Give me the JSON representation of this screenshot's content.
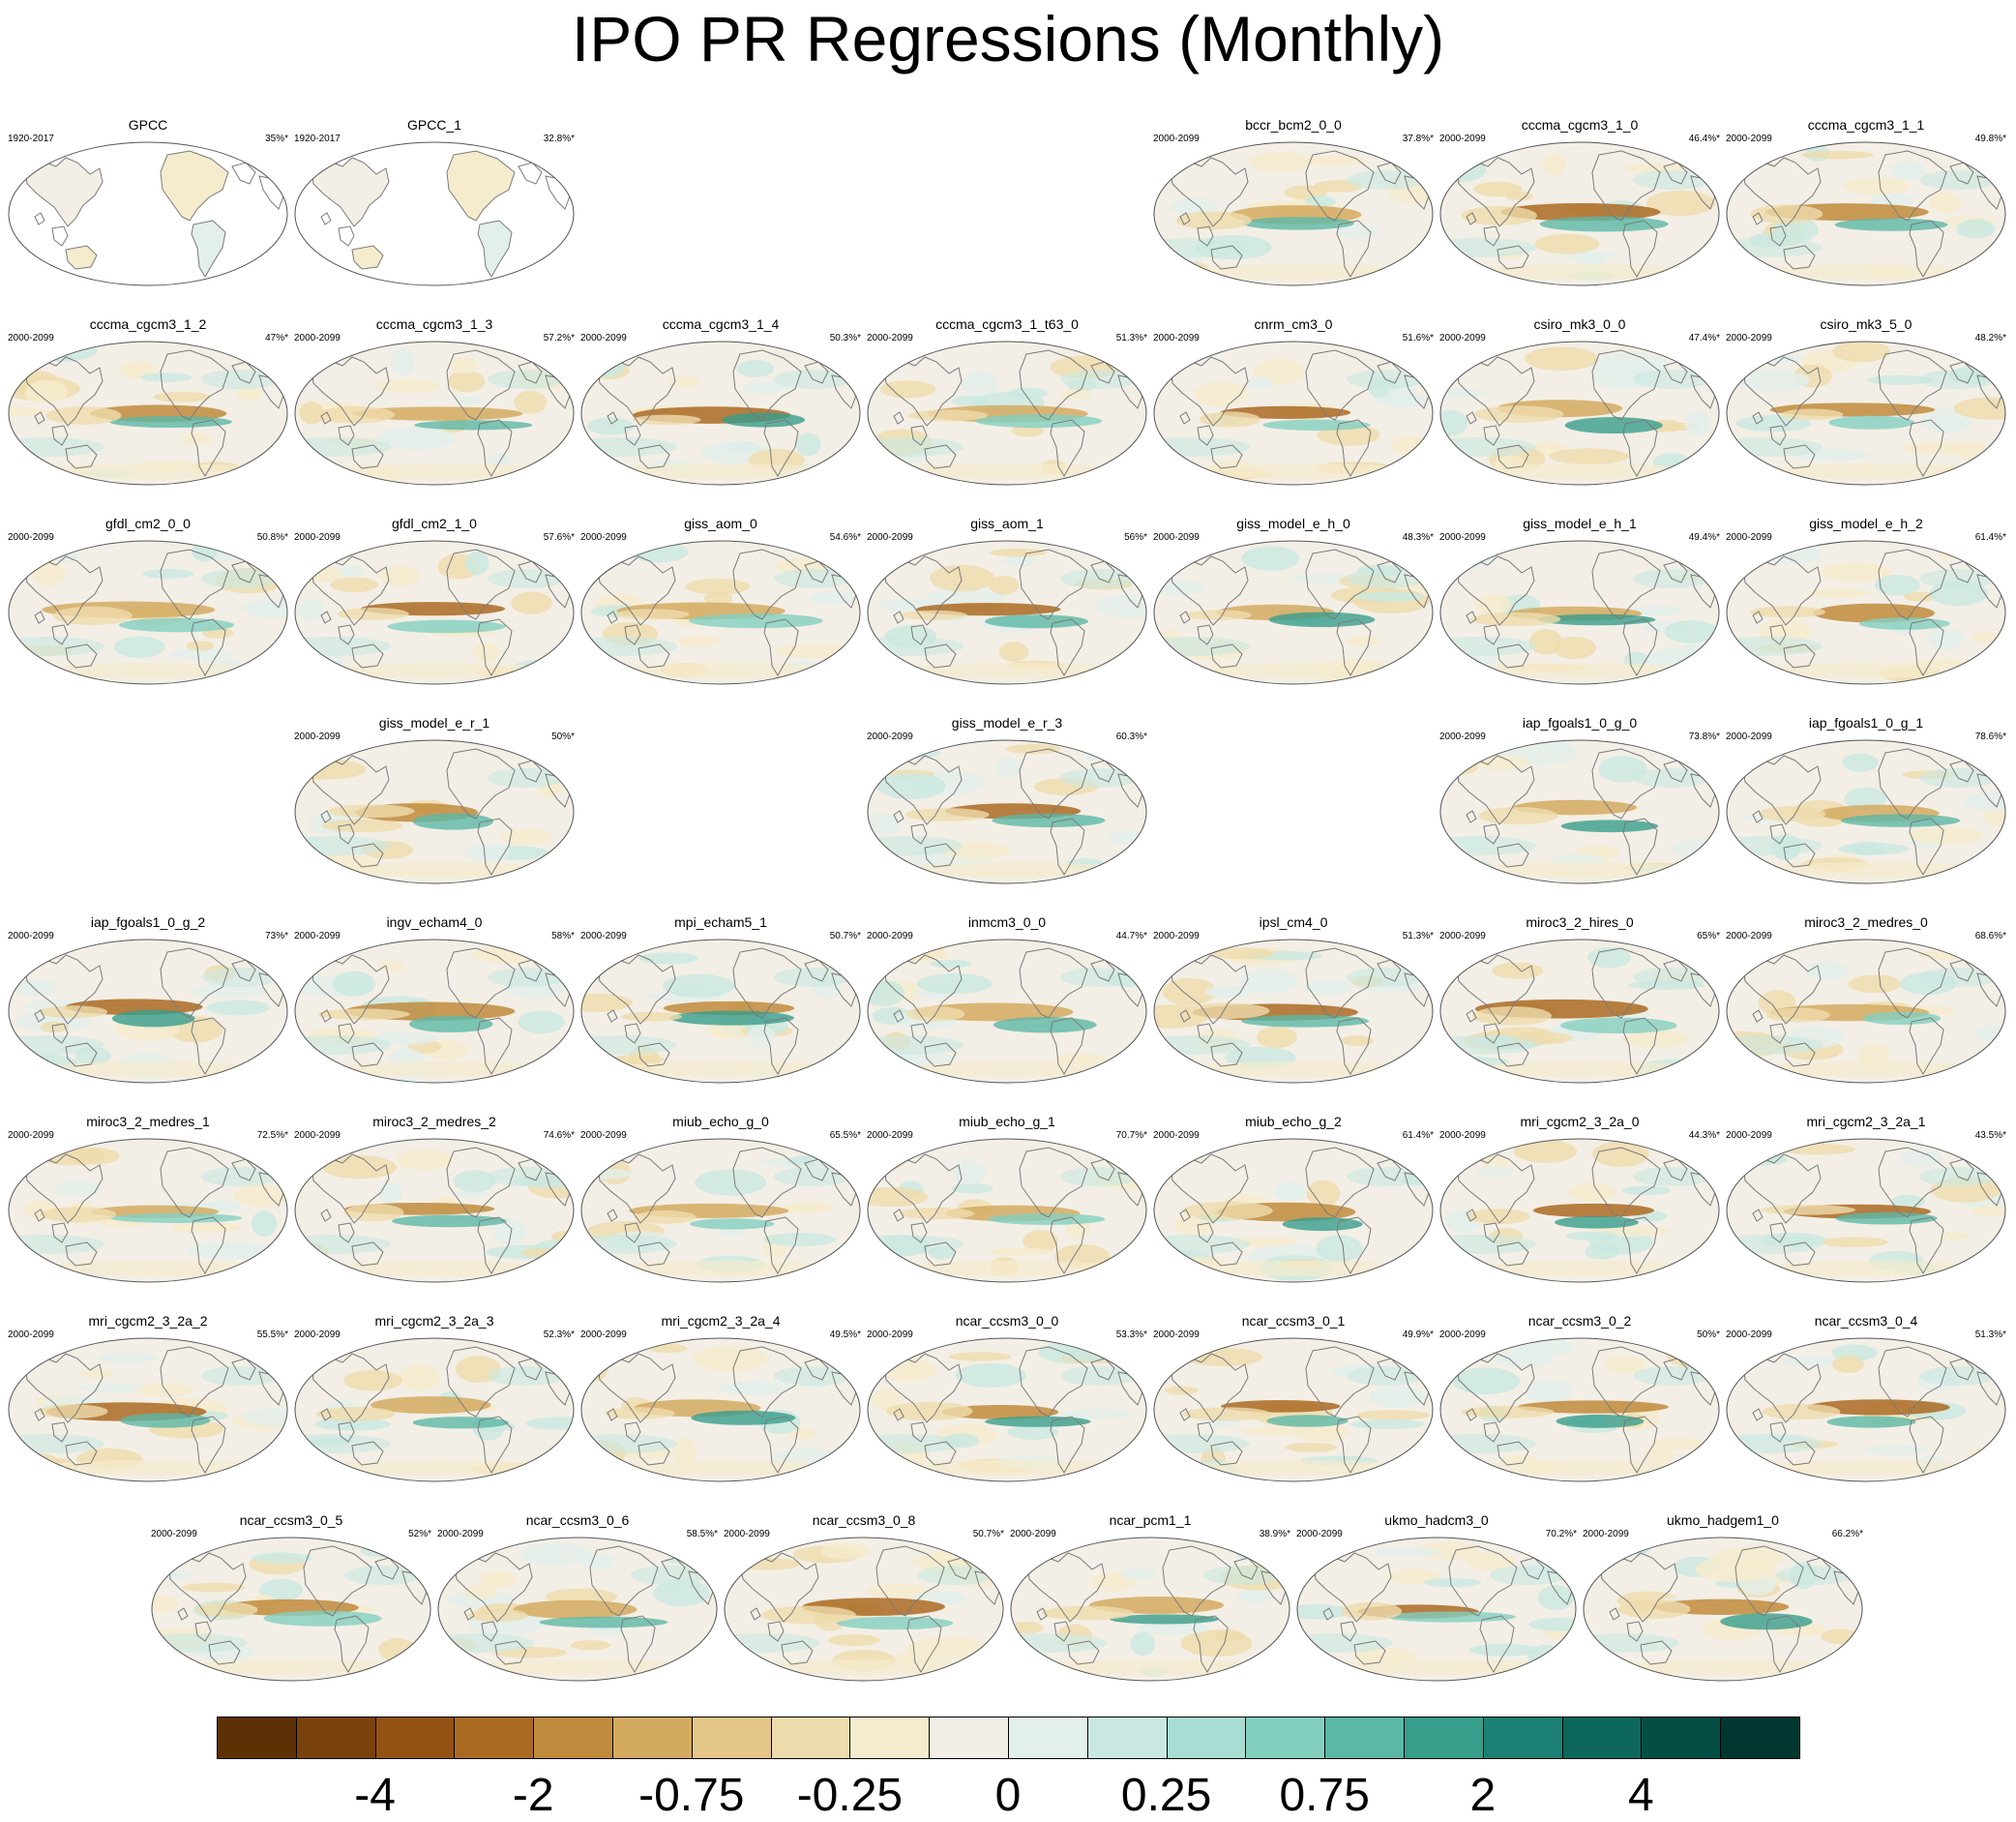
{
  "title": "IPO PR Regressions (Monthly)",
  "rows": [
    [
      {
        "name": "GPCC",
        "period": "1920-2017",
        "pct": "35%*",
        "obs": true
      },
      {
        "name": "GPCC_1",
        "period": "1920-2017",
        "pct": "32.8%*",
        "obs": true
      },
      null,
      null,
      {
        "name": "bccr_bcm2_0_0",
        "period": "2000-2099",
        "pct": "37.8%*"
      },
      {
        "name": "cccma_cgcm3_1_0",
        "period": "2000-2099",
        "pct": "46.4%*"
      },
      {
        "name": "cccma_cgcm3_1_1",
        "period": "2000-2099",
        "pct": "49.8%*"
      }
    ],
    [
      {
        "name": "cccma_cgcm3_1_2",
        "period": "2000-2099",
        "pct": "47%*"
      },
      {
        "name": "cccma_cgcm3_1_3",
        "period": "2000-2099",
        "pct": "57.2%*"
      },
      {
        "name": "cccma_cgcm3_1_4",
        "period": "2000-2099",
        "pct": "50.3%*"
      },
      {
        "name": "cccma_cgcm3_1_t63_0",
        "period": "2000-2099",
        "pct": "51.3%*"
      },
      {
        "name": "cnrm_cm3_0",
        "period": "2000-2099",
        "pct": "51.6%*"
      },
      {
        "name": "csiro_mk3_0_0",
        "period": "2000-2099",
        "pct": "47.4%*"
      },
      {
        "name": "csiro_mk3_5_0",
        "period": "2000-2099",
        "pct": "48.2%*"
      }
    ],
    [
      {
        "name": "gfdl_cm2_0_0",
        "period": "2000-2099",
        "pct": "50.8%*"
      },
      {
        "name": "gfdl_cm2_1_0",
        "period": "2000-2099",
        "pct": "57.6%*"
      },
      {
        "name": "giss_aom_0",
        "period": "2000-2099",
        "pct": "54.6%*"
      },
      {
        "name": "giss_aom_1",
        "period": "2000-2099",
        "pct": "56%*"
      },
      {
        "name": "giss_model_e_h_0",
        "period": "2000-2099",
        "pct": "48.3%*"
      },
      {
        "name": "giss_model_e_h_1",
        "period": "2000-2099",
        "pct": "49.4%*"
      },
      {
        "name": "giss_model_e_h_2",
        "period": "2000-2099",
        "pct": "61.4%*"
      }
    ],
    [
      null,
      {
        "name": "giss_model_e_r_1",
        "period": "2000-2099",
        "pct": "50%*"
      },
      null,
      {
        "name": "giss_model_e_r_3",
        "period": "2000-2099",
        "pct": "60.3%*"
      },
      null,
      {
        "name": "iap_fgoals1_0_g_0",
        "period": "2000-2099",
        "pct": "73.8%*"
      },
      {
        "name": "iap_fgoals1_0_g_1",
        "period": "2000-2099",
        "pct": "78.6%*"
      }
    ],
    [
      {
        "name": "iap_fgoals1_0_g_2",
        "period": "2000-2099",
        "pct": "73%*"
      },
      {
        "name": "ingv_echam4_0",
        "period": "2000-2099",
        "pct": "58%*"
      },
      {
        "name": "mpi_echam5_1",
        "period": "2000-2099",
        "pct": "50.7%*"
      },
      {
        "name": "inmcm3_0_0",
        "period": "2000-2099",
        "pct": "44.7%*"
      },
      {
        "name": "ipsl_cm4_0",
        "period": "2000-2099",
        "pct": "51.3%*"
      },
      {
        "name": "miroc3_2_hires_0",
        "period": "2000-2099",
        "pct": "65%*"
      },
      {
        "name": "miroc3_2_medres_0",
        "period": "2000-2099",
        "pct": "68.6%*"
      }
    ],
    [
      {
        "name": "miroc3_2_medres_1",
        "period": "2000-2099",
        "pct": "72.5%*"
      },
      {
        "name": "miroc3_2_medres_2",
        "period": "2000-2099",
        "pct": "74.6%*"
      },
      {
        "name": "miub_echo_g_0",
        "period": "2000-2099",
        "pct": "65.5%*"
      },
      {
        "name": "miub_echo_g_1",
        "period": "2000-2099",
        "pct": "70.7%*"
      },
      {
        "name": "miub_echo_g_2",
        "period": "2000-2099",
        "pct": "61.4%*"
      },
      {
        "name": "mri_cgcm2_3_2a_0",
        "period": "2000-2099",
        "pct": "44.3%*"
      },
      {
        "name": "mri_cgcm2_3_2a_1",
        "period": "2000-2099",
        "pct": "43.5%*"
      }
    ],
    [
      {
        "name": "mri_cgcm2_3_2a_2",
        "period": "2000-2099",
        "pct": "55.5%*"
      },
      {
        "name": "mri_cgcm2_3_2a_3",
        "period": "2000-2099",
        "pct": "52.3%*"
      },
      {
        "name": "mri_cgcm2_3_2a_4",
        "period": "2000-2099",
        "pct": "49.5%*"
      },
      {
        "name": "ncar_ccsm3_0_0",
        "period": "2000-2099",
        "pct": "53.3%*"
      },
      {
        "name": "ncar_ccsm3_0_1",
        "period": "2000-2099",
        "pct": "49.9%*"
      },
      {
        "name": "ncar_ccsm3_0_2",
        "period": "2000-2099",
        "pct": "50%*"
      },
      {
        "name": "ncar_ccsm3_0_4",
        "period": "2000-2099",
        "pct": "51.3%*"
      }
    ]
  ],
  "last_row": [
    {
      "name": "ncar_ccsm3_0_5",
      "period": "2000-2099",
      "pct": "52%*"
    },
    {
      "name": "ncar_ccsm3_0_6",
      "period": "2000-2099",
      "pct": "58.5%*"
    },
    {
      "name": "ncar_ccsm3_0_8",
      "period": "2000-2099",
      "pct": "50.7%*"
    },
    {
      "name": "ncar_pcm1_1",
      "period": "2000-2099",
      "pct": "38.9%*"
    },
    {
      "name": "ukmo_hadcm3_0",
      "period": "2000-2099",
      "pct": "70.2%*"
    },
    {
      "name": "ukmo_hadgem1_0",
      "period": "2000-2099",
      "pct": "66.2%*"
    }
  ],
  "colorbar": {
    "colors": [
      "#5e3006",
      "#7a420c",
      "#935314",
      "#aa6a22",
      "#c08b3c",
      "#d4aa60",
      "#e4c688",
      "#efdcad",
      "#f5ebcd",
      "#f3efe6",
      "#e2efeb",
      "#c9e8e1",
      "#a7ddd3",
      "#83cfc0",
      "#5cb8a6",
      "#389e8c",
      "#1c8174",
      "#0d675b",
      "#044e44",
      "#013730"
    ],
    "labels": [
      "-4",
      "-2",
      "-0.75",
      "-0.25",
      "0",
      "0.25",
      "0.75",
      "2",
      "4"
    ],
    "label_boundaries": [
      2,
      4,
      6,
      8,
      10,
      12,
      14,
      16,
      18
    ]
  }
}
